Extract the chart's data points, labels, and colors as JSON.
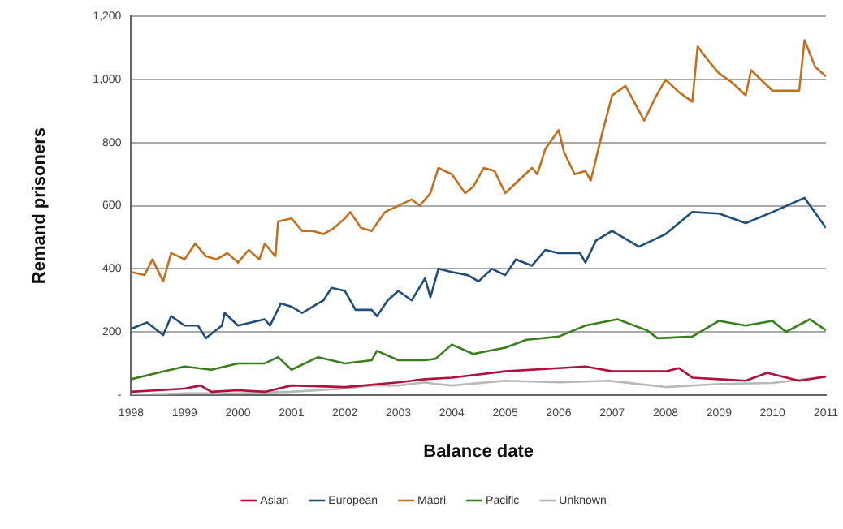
{
  "chart_data": {
    "type": "line",
    "xlabel": "Balance date",
    "ylabel": "Remand prisoners",
    "xlim": [
      1998,
      2011
    ],
    "xticks": [
      1998,
      1999,
      2000,
      2001,
      2002,
      2003,
      2004,
      2005,
      2006,
      2007,
      2008,
      2009,
      2010,
      2011
    ],
    "ylim": [
      0,
      1200
    ],
    "yticks": [
      {
        "value": 0,
        "label": "-"
      },
      {
        "value": 200,
        "label": "200"
      },
      {
        "value": 400,
        "label": "400"
      },
      {
        "value": 600,
        "label": "600"
      },
      {
        "value": 800,
        "label": "800"
      },
      {
        "value": 1000,
        "label": "1,000"
      },
      {
        "value": 1200,
        "label": "1,200"
      }
    ],
    "grid": "y",
    "legend": "bottom",
    "marker": "none",
    "line_style": "solid",
    "series": [
      {
        "name": "Asian",
        "color": "#b0103c",
        "x": [
          1998,
          1998.5,
          1999,
          1999.3,
          1999.5,
          2000,
          2000.5,
          2001,
          2002,
          2003,
          2003.5,
          2004,
          2005,
          2006,
          2006.5,
          2007,
          2008,
          2008.25,
          2008.5,
          2009,
          2009.5,
          2009.9,
          2010.5,
          2011
        ],
        "values": [
          10,
          15,
          20,
          30,
          10,
          15,
          10,
          30,
          25,
          40,
          50,
          55,
          75,
          85,
          90,
          75,
          75,
          85,
          55,
          50,
          45,
          70,
          45,
          58
        ]
      },
      {
        "name": "European",
        "color": "#1f4e79",
        "x": [
          1998,
          1998.3,
          1998.6,
          1998.75,
          1999,
          1999.25,
          1999.4,
          1999.7,
          1999.75,
          2000,
          2000.5,
          2000.6,
          2000.8,
          2001,
          2001.2,
          2001.4,
          2001.6,
          2001.75,
          2002,
          2002.2,
          2002.5,
          2002.6,
          2002.8,
          2003,
          2003.25,
          2003.5,
          2003.6,
          2003.75,
          2004,
          2004.3,
          2004.5,
          2004.75,
          2005,
          2005.2,
          2005.5,
          2005.75,
          2006,
          2006.4,
          2006.5,
          2006.7,
          2007,
          2007.5,
          2008,
          2008.5,
          2009,
          2009.5,
          2010,
          2010.6,
          2011
        ],
        "values": [
          210,
          230,
          190,
          250,
          220,
          220,
          180,
          220,
          260,
          220,
          240,
          220,
          290,
          280,
          260,
          280,
          300,
          340,
          330,
          270,
          270,
          250,
          300,
          330,
          300,
          370,
          310,
          400,
          390,
          380,
          360,
          400,
          380,
          430,
          410,
          460,
          450,
          450,
          420,
          490,
          520,
          470,
          510,
          580,
          575,
          545,
          580,
          625,
          530
        ]
      },
      {
        "name": "Māori",
        "color": "#c07020",
        "x": [
          1998,
          1998.25,
          1998.4,
          1998.6,
          1998.75,
          1999,
          1999.2,
          1999.4,
          1999.6,
          1999.8,
          2000,
          2000.2,
          2000.4,
          2000.5,
          2000.7,
          2000.75,
          2001,
          2001.2,
          2001.4,
          2001.6,
          2001.8,
          2002,
          2002.1,
          2002.3,
          2002.5,
          2002.75,
          2003,
          2003.25,
          2003.4,
          2003.6,
          2003.75,
          2004,
          2004.25,
          2004.4,
          2004.6,
          2004.8,
          2005,
          2005.25,
          2005.5,
          2005.6,
          2005.75,
          2006,
          2006.1,
          2006.3,
          2006.5,
          2006.6,
          2006.8,
          2007,
          2007.25,
          2007.6,
          2007.8,
          2008,
          2008.25,
          2008.5,
          2008.6,
          2008.8,
          2009,
          2009.25,
          2009.5,
          2009.6,
          2010,
          2010.5,
          2010.6,
          2010.8,
          2011
        ],
        "values": [
          390,
          380,
          430,
          360,
          450,
          430,
          480,
          440,
          430,
          450,
          420,
          460,
          430,
          480,
          440,
          550,
          560,
          520,
          520,
          510,
          530,
          560,
          580,
          530,
          520,
          580,
          600,
          620,
          600,
          640,
          720,
          700,
          640,
          660,
          720,
          710,
          640,
          680,
          720,
          700,
          780,
          840,
          770,
          700,
          710,
          680,
          820,
          950,
          980,
          870,
          940,
          1000,
          960,
          930,
          1105,
          1060,
          1020,
          990,
          950,
          1030,
          965,
          965,
          1125,
          1040,
          1010
        ]
      },
      {
        "name": "Pacific",
        "color": "#3a7d1e",
        "x": [
          1998,
          1998.5,
          1999,
          1999.5,
          2000,
          2000.5,
          2000.75,
          2001,
          2001.5,
          2002,
          2002.5,
          2002.6,
          2003,
          2003.5,
          2003.7,
          2004,
          2004.4,
          2005,
          2005.4,
          2006,
          2006.5,
          2007.1,
          2007.65,
          2007.85,
          2008.5,
          2009,
          2009.5,
          2010,
          2010.25,
          2010.7,
          2011
        ],
        "values": [
          50,
          70,
          90,
          80,
          100,
          100,
          120,
          80,
          120,
          100,
          110,
          140,
          110,
          110,
          115,
          160,
          130,
          150,
          175,
          185,
          220,
          240,
          205,
          180,
          185,
          235,
          220,
          235,
          200,
          240,
          205
        ]
      },
      {
        "name": "Unknown",
        "color": "#b8b8b8",
        "x": [
          1998,
          1999,
          2000,
          2001,
          2002,
          2002.5,
          2003,
          2003.5,
          2003.7,
          2004,
          2005,
          2006,
          2006.95,
          2008,
          2009,
          2010,
          2011
        ],
        "values": [
          0,
          5,
          5,
          10,
          20,
          30,
          30,
          40,
          35,
          30,
          45,
          40,
          45,
          25,
          35,
          38,
          58
        ]
      }
    ]
  }
}
